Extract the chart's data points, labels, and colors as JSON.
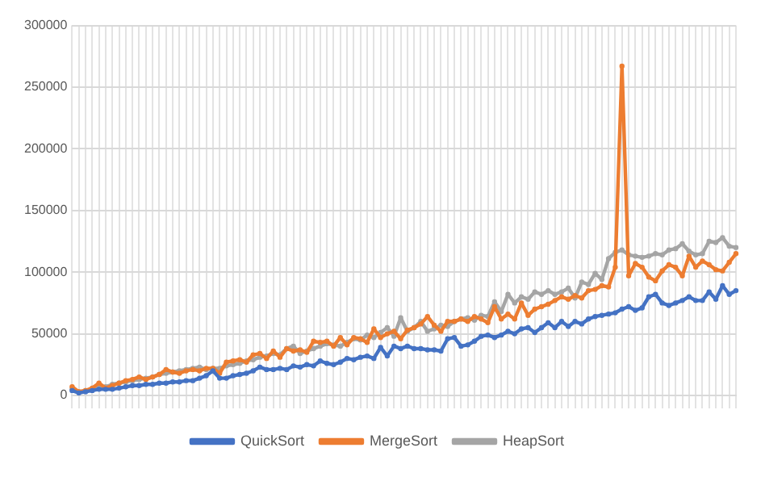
{
  "chart_data": {
    "type": "line",
    "categories": [
      null,
      null,
      null,
      null,
      null,
      null,
      null,
      null,
      null,
      null,
      null,
      null,
      null,
      null,
      null,
      null,
      null,
      null,
      null,
      null,
      null,
      null,
      null,
      null,
      null,
      null,
      null,
      null,
      null,
      null,
      null,
      null,
      null,
      null,
      null,
      null,
      null,
      null,
      null,
      null,
      null,
      null,
      null,
      null,
      null,
      null,
      null,
      null,
      null,
      null,
      null,
      null,
      null,
      null,
      null,
      null,
      null,
      null,
      null,
      null,
      null,
      null,
      null,
      null,
      null,
      null,
      null,
      null,
      null,
      null,
      null,
      null,
      null,
      null,
      null,
      null,
      null,
      null,
      null,
      null,
      null,
      null,
      null,
      null,
      null,
      null,
      null,
      null,
      null,
      null,
      null,
      null,
      null,
      null,
      null,
      null,
      null,
      null,
      null,
      null
    ],
    "series": [
      {
        "name": "QuickSort",
        "color": "#4472c4",
        "values": [
          4000,
          2000,
          3000,
          4000,
          5000,
          5000,
          5000,
          6000,
          7000,
          8000,
          8000,
          9000,
          9000,
          10000,
          10000,
          11000,
          11000,
          12000,
          12000,
          14000,
          16000,
          20000,
          14000,
          14000,
          16000,
          17000,
          18000,
          20000,
          23000,
          21000,
          21000,
          22000,
          21000,
          24000,
          23000,
          25000,
          24000,
          28000,
          26000,
          25000,
          27000,
          30000,
          29000,
          31000,
          32000,
          30000,
          39000,
          32000,
          40000,
          38000,
          40000,
          38000,
          38000,
          37000,
          37000,
          36000,
          46000,
          47000,
          40000,
          41000,
          44000,
          48000,
          49000,
          47000,
          49000,
          52000,
          50000,
          54000,
          55000,
          51000,
          55000,
          59000,
          55000,
          60000,
          56000,
          60000,
          58000,
          62000,
          64000,
          65000,
          66000,
          67000,
          70000,
          72000,
          69000,
          71000,
          80000,
          82000,
          75000,
          73000,
          75000,
          77000,
          80000,
          77000,
          77000,
          84000,
          78000,
          89000,
          82000,
          85000
        ]
      },
      {
        "name": "MergeSort",
        "color": "#ed7d31",
        "values": [
          7000,
          3000,
          4000,
          6000,
          10000,
          6000,
          8000,
          10000,
          12000,
          13000,
          15000,
          13000,
          15000,
          17000,
          21000,
          19000,
          18000,
          20000,
          21000,
          20000,
          22000,
          22000,
          18000,
          27000,
          28000,
          29000,
          27000,
          33000,
          34000,
          30000,
          36000,
          31000,
          38000,
          36000,
          37000,
          35000,
          44000,
          43000,
          44000,
          40000,
          47000,
          41000,
          47000,
          46000,
          43000,
          54000,
          47000,
          50000,
          52000,
          46000,
          53000,
          55000,
          58000,
          64000,
          57000,
          52000,
          60000,
          60000,
          62000,
          60000,
          64000,
          62000,
          59000,
          72000,
          62000,
          66000,
          62000,
          75000,
          65000,
          70000,
          72000,
          74000,
          77000,
          80000,
          78000,
          81000,
          79000,
          85000,
          86000,
          89000,
          88000,
          104000,
          267000,
          97000,
          107000,
          104000,
          96000,
          93000,
          101000,
          106000,
          104000,
          97000,
          113000,
          104000,
          109000,
          106000,
          102000,
          101000,
          108000,
          115000
        ]
      },
      {
        "name": "HeapSort",
        "color": "#a5a5a5",
        "values": [
          5000,
          3000,
          4000,
          5000,
          6000,
          7000,
          9000,
          10000,
          11000,
          12000,
          13000,
          14000,
          15000,
          17000,
          18000,
          19000,
          20000,
          21000,
          22000,
          23000,
          21000,
          22000,
          22000,
          24000,
          25000,
          26000,
          28000,
          29000,
          31000,
          32000,
          34000,
          33000,
          38000,
          40000,
          34000,
          36000,
          38000,
          40000,
          42000,
          41000,
          40000,
          43000,
          46000,
          45000,
          49000,
          47000,
          51000,
          55000,
          48000,
          63000,
          52000,
          55000,
          60000,
          52000,
          54000,
          57000,
          56000,
          60000,
          62000,
          63000,
          61000,
          65000,
          64000,
          76000,
          68000,
          82000,
          75000,
          80000,
          78000,
          84000,
          82000,
          85000,
          82000,
          84000,
          87000,
          79000,
          92000,
          90000,
          99000,
          94000,
          111000,
          116000,
          118000,
          114000,
          113000,
          112000,
          113000,
          115000,
          114000,
          118000,
          119000,
          123000,
          117000,
          114000,
          115000,
          125000,
          124000,
          128000,
          121000,
          120000
        ]
      }
    ],
    "ylim": [
      0,
      300000
    ],
    "yticks": [
      0,
      50000,
      100000,
      150000,
      200000,
      250000,
      300000
    ],
    "grid": true,
    "legend": "bottom",
    "marker": "circle",
    "line_style": "solid"
  }
}
